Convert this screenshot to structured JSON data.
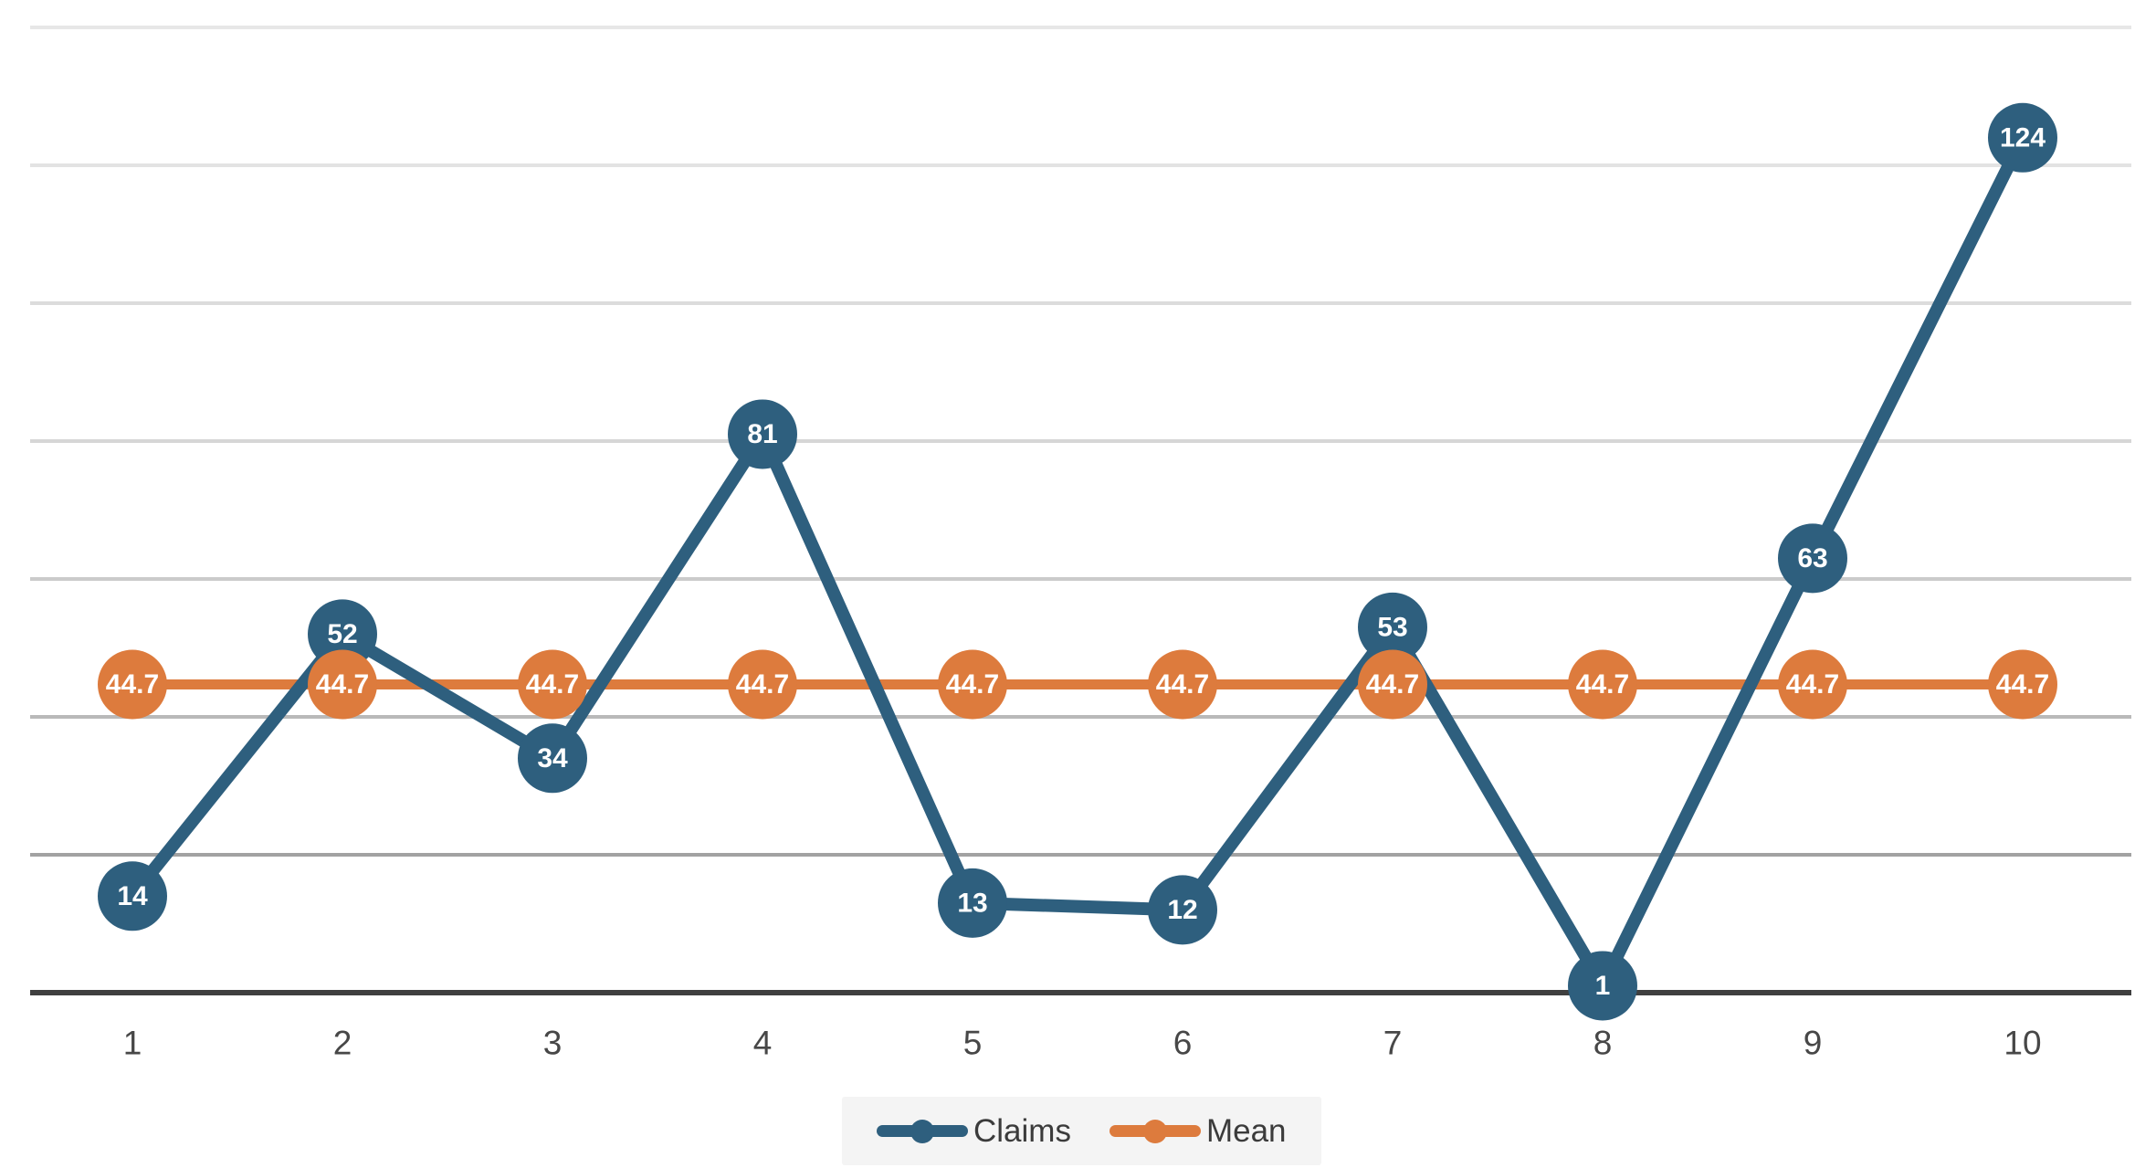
{
  "chart_data": {
    "type": "line",
    "categories": [
      "1",
      "2",
      "3",
      "4",
      "5",
      "6",
      "7",
      "8",
      "9",
      "10"
    ],
    "series": [
      {
        "name": "Claims",
        "color": "#2e5f7e",
        "values": [
          14,
          52,
          34,
          81,
          13,
          12,
          53,
          1,
          63,
          124
        ],
        "labels": [
          "14",
          "52",
          "34",
          "81",
          "13",
          "12",
          "53",
          "1",
          "63",
          "124"
        ]
      },
      {
        "name": "Mean",
        "color": "#dd7b3d",
        "values": [
          44.7,
          44.7,
          44.7,
          44.7,
          44.7,
          44.7,
          44.7,
          44.7,
          44.7,
          44.7
        ],
        "labels": [
          "44.7",
          "44.7",
          "44.7",
          "44.7",
          "44.7",
          "44.7",
          "44.7",
          "44.7",
          "44.7",
          "44.7"
        ]
      }
    ],
    "title": "",
    "xlabel": "",
    "ylabel": "",
    "ylim": [
      0,
      140
    ],
    "grid": {
      "on": true,
      "step": 20,
      "line_colors_top_to_bottom": [
        "#e7e7e7",
        "#e3e3e3",
        "#dcdcdc",
        "#d6d6d6",
        "#cbcbcb",
        "#b9b9b9",
        "#a2a2a2"
      ]
    },
    "axis_color": "#3f3f3f",
    "tick_label_color": "#474747",
    "marker_label_color": "#ffffff",
    "legend_position": "bottom-center",
    "legend_bg": "#f4f4f4"
  },
  "legend": {
    "claims_label": "Claims",
    "mean_label": "Mean"
  }
}
